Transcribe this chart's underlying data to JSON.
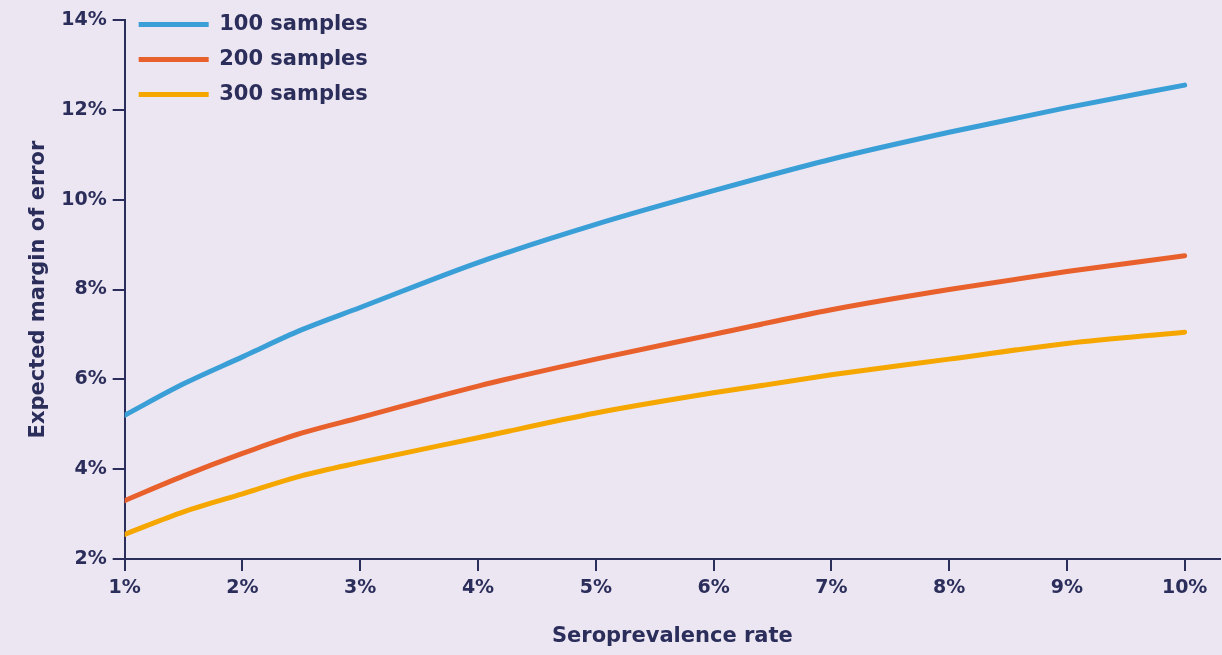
{
  "chart_data": {
    "type": "line",
    "xlabel": "Seroprevalence rate",
    "ylabel": "Expected margin of error",
    "x": [
      1,
      1.5,
      2,
      2.5,
      3,
      4,
      5,
      6,
      7,
      8,
      9,
      10
    ],
    "series": [
      {
        "name": "100 samples",
        "color": "#3a9fd6",
        "values": [
          5.2,
          5.9,
          6.5,
          7.1,
          7.6,
          8.6,
          9.45,
          10.2,
          10.9,
          11.5,
          12.05,
          12.55
        ]
      },
      {
        "name": "200 samples",
        "color": "#e8612c",
        "values": [
          3.3,
          3.85,
          4.35,
          4.8,
          5.15,
          5.85,
          6.45,
          7.0,
          7.55,
          8.0,
          8.4,
          8.75
        ]
      },
      {
        "name": "300 samples",
        "color": "#f5a700",
        "values": [
          2.55,
          3.05,
          3.45,
          3.85,
          4.15,
          4.7,
          5.25,
          5.7,
          6.1,
          6.45,
          6.8,
          7.05
        ]
      }
    ],
    "xlim": [
      1,
      10.3
    ],
    "ylim": [
      2,
      14
    ],
    "xticks": [
      {
        "value": 1,
        "label": "1%"
      },
      {
        "value": 2,
        "label": "2%"
      },
      {
        "value": 3,
        "label": "3%"
      },
      {
        "value": 4,
        "label": "4%"
      },
      {
        "value": 5,
        "label": "5%"
      },
      {
        "value": 6,
        "label": "6%"
      },
      {
        "value": 7,
        "label": "7%"
      },
      {
        "value": 8,
        "label": "8%"
      },
      {
        "value": 9,
        "label": "9%"
      },
      {
        "value": 10,
        "label": "10%"
      }
    ],
    "yticks": [
      {
        "value": 2,
        "label": "2%"
      },
      {
        "value": 4,
        "label": "4%"
      },
      {
        "value": 6,
        "label": "6%"
      },
      {
        "value": 8,
        "label": "8%"
      },
      {
        "value": 10,
        "label": "10%"
      },
      {
        "value": 12,
        "label": "12%"
      },
      {
        "value": 14,
        "label": "14%"
      }
    ],
    "grid": false,
    "legend": "top left",
    "marker": "none",
    "line_style": "solid"
  }
}
